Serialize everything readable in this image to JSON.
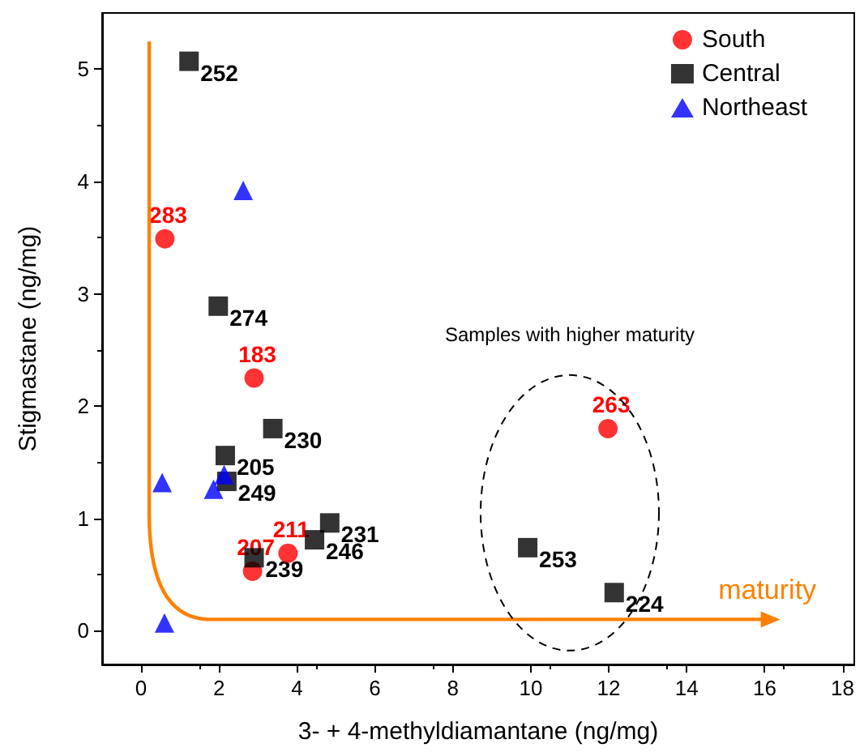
{
  "chart_data": {
    "type": "scatter",
    "xlabel": "3- + 4-methyldiamantane (ng/mg)",
    "ylabel": "Stigmastane (ng/mg)",
    "xlim": [
      -1,
      18.3
    ],
    "ylim": [
      -0.3,
      5.5
    ],
    "xticks": [
      0,
      2,
      4,
      6,
      8,
      10,
      12,
      14,
      16,
      18
    ],
    "yticks": [
      0,
      1,
      2,
      3,
      4,
      5
    ],
    "grid": false,
    "legend": "top right",
    "annotations": [
      "Samples with higher maturity",
      "maturity",
      {
        "text": "283",
        "x": 0.61,
        "y": 3.49
      },
      {
        "text": "183",
        "x": 2.9,
        "y": 2.25
      },
      {
        "text": "207",
        "x": 2.86,
        "y": 0.53
      },
      {
        "text": "211",
        "x": 3.77,
        "y": 0.69
      },
      {
        "text": "263",
        "x": 11.98,
        "y": 1.8
      },
      {
        "text": "252",
        "x": 1.23,
        "y": 5.07
      },
      {
        "text": "274",
        "x": 1.98,
        "y": 2.89
      },
      {
        "text": "230",
        "x": 3.38,
        "y": 1.8
      },
      {
        "text": "205",
        "x": 2.16,
        "y": 1.56
      },
      {
        "text": "249",
        "x": 2.2,
        "y": 1.33
      },
      {
        "text": "231",
        "x": 4.84,
        "y": 0.96
      },
      {
        "text": "246",
        "x": 4.45,
        "y": 0.81
      },
      {
        "text": "239",
        "x": 2.9,
        "y": 0.65
      },
      {
        "text": "253",
        "x": 9.92,
        "y": 0.74
      },
      {
        "text": "224",
        "x": 12.14,
        "y": 0.34
      }
    ],
    "series": [
      {
        "name": "South",
        "color": "#ff0000",
        "marker": "circle",
        "x": [
          0.61,
          2.9,
          2.86,
          3.77,
          11.98
        ],
        "values": [
          3.49,
          2.25,
          0.53,
          0.69,
          1.8
        ]
      },
      {
        "name": "Central",
        "color": "#000000",
        "marker": "square",
        "x": [
          1.23,
          1.98,
          3.38,
          2.16,
          2.2,
          4.84,
          4.45,
          2.9,
          9.92,
          12.14
        ],
        "values": [
          5.07,
          2.89,
          1.8,
          1.56,
          1.33,
          0.96,
          0.81,
          0.65,
          0.74,
          0.34
        ]
      },
      {
        "name": "Northeast",
        "color": "#0000ff",
        "marker": "triangle",
        "x": [
          2.62,
          0.54,
          1.86,
          2.13,
          0.6
        ],
        "values": [
          3.92,
          1.32,
          1.26,
          1.39,
          0.07
        ]
      }
    ]
  }
}
